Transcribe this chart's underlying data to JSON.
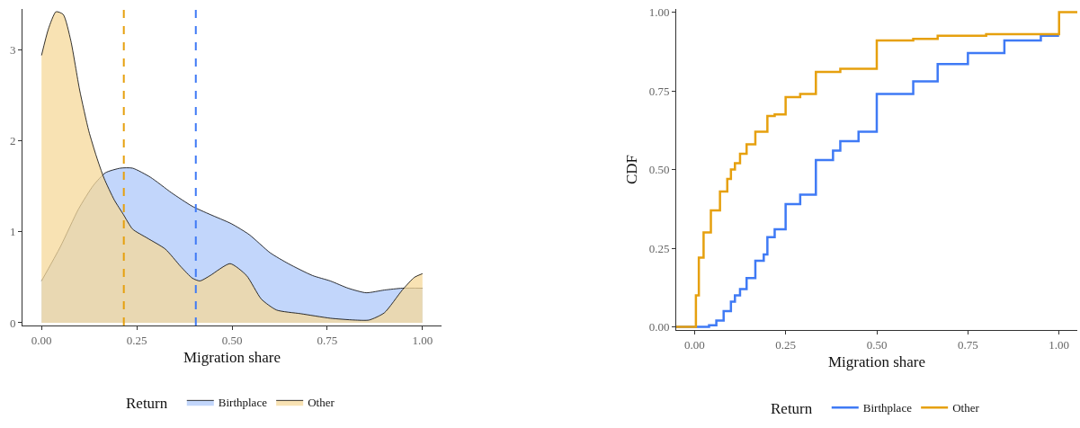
{
  "chart_data": [
    {
      "type": "area",
      "xlabel": "Migration share",
      "legend_title": "Return",
      "legend": "bottom",
      "xlim": [
        -0.05,
        1.05
      ],
      "ylim": [
        -0.03,
        3.45
      ],
      "xticks": [
        {
          "value": 0,
          "label": "0.00"
        },
        {
          "value": 0.25,
          "label": "0.25"
        },
        {
          "value": 0.5,
          "label": "0.50"
        },
        {
          "value": 0.75,
          "label": "0.75"
        },
        {
          "value": 1,
          "label": "1.00"
        }
      ],
      "yticks": [
        0,
        1,
        2,
        3
      ],
      "series": [
        {
          "name": "Birthplace",
          "color": "#aec8fa",
          "x": [
            0,
            0.05,
            0.097,
            0.136,
            0.168,
            0.207,
            0.239,
            0.286,
            0.341,
            0.396,
            0.443,
            0.498,
            0.545,
            0.6,
            0.648,
            0.711,
            0.758,
            0.805,
            0.852,
            0.9,
            0.947,
            1.0
          ],
          "values": [
            0.46,
            0.84,
            1.25,
            1.51,
            1.65,
            1.7,
            1.7,
            1.6,
            1.43,
            1.28,
            1.19,
            1.09,
            0.97,
            0.77,
            0.65,
            0.52,
            0.46,
            0.38,
            0.33,
            0.36,
            0.38,
            0.38
          ]
        },
        {
          "name": "Other",
          "color": "#f5d899",
          "x": [
            0,
            0.018,
            0.038,
            0.057,
            0.077,
            0.1,
            0.124,
            0.144,
            0.164,
            0.191,
            0.215,
            0.239,
            0.278,
            0.325,
            0.365,
            0.396,
            0.416,
            0.443,
            0.495,
            0.538,
            0.577,
            0.617,
            0.68,
            0.758,
            0.821,
            0.86,
            0.9,
            0.947,
            0.979,
            1.0
          ],
          "values": [
            2.94,
            3.23,
            3.42,
            3.39,
            3.1,
            2.56,
            2.11,
            1.83,
            1.59,
            1.35,
            1.19,
            1.03,
            0.93,
            0.81,
            0.62,
            0.49,
            0.46,
            0.52,
            0.65,
            0.52,
            0.26,
            0.14,
            0.1,
            0.05,
            0.03,
            0.03,
            0.11,
            0.36,
            0.5,
            0.54
          ]
        }
      ],
      "ref_lines": [
        {
          "axis": "x",
          "value": 0.405,
          "label": null,
          "color": "#3f7af5",
          "line_style": "dashed"
        },
        {
          "axis": "x",
          "value": 0.216,
          "label": null,
          "color": "#e6a00e",
          "line_style": "dashed"
        }
      ]
    },
    {
      "type": "step",
      "xlabel": "Migration share",
      "ylabel": "CDF",
      "legend_title": "Return",
      "legend": "bottom",
      "xlim": [
        -0.05,
        1.05
      ],
      "ylim": [
        -0.01,
        1.01
      ],
      "xticks": [
        {
          "value": 0,
          "label": "0.00"
        },
        {
          "value": 0.25,
          "label": "0.25"
        },
        {
          "value": 0.5,
          "label": "0.50"
        },
        {
          "value": 0.75,
          "label": "0.75"
        },
        {
          "value": 1,
          "label": "1.00"
        }
      ],
      "yticks": [
        {
          "value": 0,
          "label": "0.00"
        },
        {
          "value": 0.25,
          "label": "0.25"
        },
        {
          "value": 0.5,
          "label": "0.50"
        },
        {
          "value": 0.75,
          "label": "0.75"
        },
        {
          "value": 1,
          "label": "1.00"
        }
      ],
      "series": [
        {
          "name": "Birthplace",
          "color": "#3f7af5",
          "x": [
            -0.05,
            0,
            0.04,
            0.06,
            0.08,
            0.1,
            0.111,
            0.125,
            0.143,
            0.167,
            0.19,
            0.2,
            0.22,
            0.25,
            0.29,
            0.333,
            0.38,
            0.4,
            0.45,
            0.5,
            0.6,
            0.667,
            0.75,
            0.85,
            0.95,
            1.0
          ],
          "values": [
            0,
            0,
            0.005,
            0.02,
            0.05,
            0.08,
            0.1,
            0.12,
            0.155,
            0.21,
            0.23,
            0.285,
            0.31,
            0.39,
            0.42,
            0.53,
            0.56,
            0.59,
            0.62,
            0.74,
            0.78,
            0.835,
            0.87,
            0.91,
            0.925,
            0.925
          ]
        },
        {
          "name": "Other",
          "color": "#e6a00e",
          "x": [
            -0.05,
            0,
            0.004,
            0.012,
            0.025,
            0.045,
            0.07,
            0.09,
            0.1,
            0.111,
            0.125,
            0.143,
            0.167,
            0.2,
            0.22,
            0.25,
            0.29,
            0.333,
            0.4,
            0.5,
            0.6,
            0.667,
            0.8,
            1.0,
            1.05
          ],
          "values": [
            0,
            0,
            0.1,
            0.22,
            0.3,
            0.37,
            0.43,
            0.47,
            0.5,
            0.52,
            0.55,
            0.58,
            0.62,
            0.67,
            0.675,
            0.73,
            0.74,
            0.81,
            0.82,
            0.91,
            0.915,
            0.925,
            0.93,
            1.0,
            1.0
          ]
        }
      ]
    }
  ]
}
